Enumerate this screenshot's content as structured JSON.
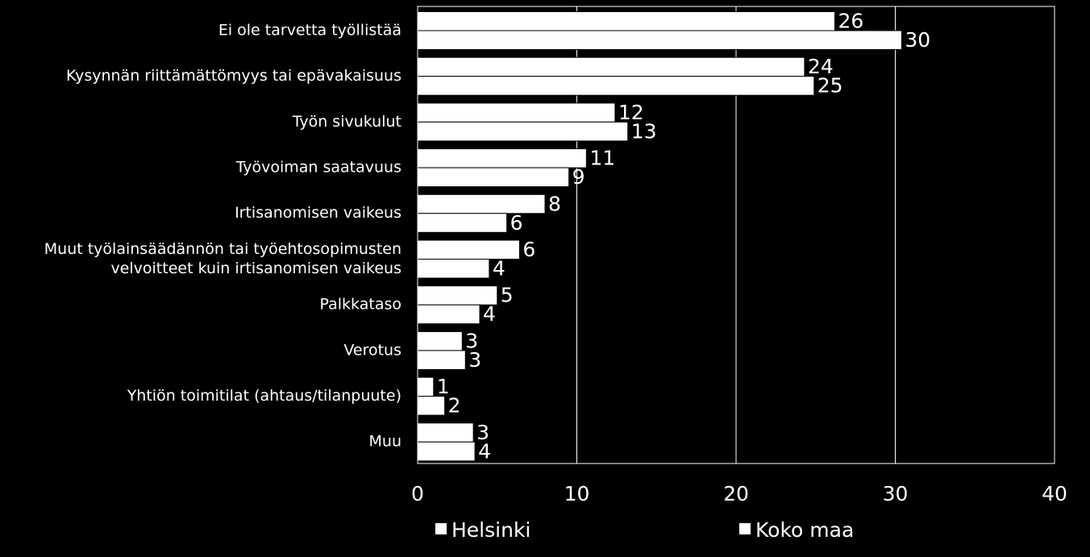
{
  "chart_data": {
    "type": "bar",
    "orientation": "horizontal",
    "title": "",
    "xlabel": "",
    "ylabel": "",
    "xlim": [
      0,
      40
    ],
    "xticks": [
      0,
      10,
      20,
      30,
      40
    ],
    "grid": true,
    "legend_position": "bottom",
    "categories": [
      "Ei ole tarvetta työllistää",
      "Kysynnän riittämättömyys tai epävakaisuus",
      "Työn sivukulut",
      "Työvoiman saatavuus",
      "Irtisanomisen vaikeus",
      "Muut työlainsäädännön tai työehtosopimusten velvoitteet kuin irtisanomisen vaikeus",
      "Palkkataso",
      "Verotus",
      "Yhtiön toimitilat (ahtaus/tilanpuute)",
      "Muu"
    ],
    "category_lines": [
      [
        "Ei ole tarvetta työllistää"
      ],
      [
        "Kysynnän riittämättömyys tai epävakaisuus"
      ],
      [
        "Työn sivukulut"
      ],
      [
        "Työvoiman saatavuus"
      ],
      [
        "Irtisanomisen vaikeus"
      ],
      [
        "Muut työlainsäädännön tai työehtosopimusten",
        "velvoitteet kuin irtisanomisen vaikeus"
      ],
      [
        "Palkkataso"
      ],
      [
        "Verotus"
      ],
      [
        "Yhtiön toimitilat (ahtaus/tilanpuute)"
      ],
      [
        "Muu"
      ]
    ],
    "series": [
      {
        "name": "Helsinki",
        "color": "#ffffff",
        "values": [
          26.2,
          24.3,
          12.4,
          10.6,
          8.0,
          6.4,
          5.0,
          2.8,
          1.0,
          3.5
        ],
        "labels": [
          "26",
          "24",
          "12",
          "11",
          "8",
          "6",
          "5",
          "3",
          "1",
          "3"
        ]
      },
      {
        "name": "Koko maa",
        "color": "#ffffff",
        "values": [
          30.4,
          24.9,
          13.2,
          9.5,
          5.6,
          4.5,
          3.9,
          3.0,
          1.7,
          3.6
        ],
        "labels": [
          "30",
          "25",
          "13",
          "9",
          "6",
          "4",
          "4",
          "3",
          "2",
          "4"
        ]
      }
    ]
  }
}
